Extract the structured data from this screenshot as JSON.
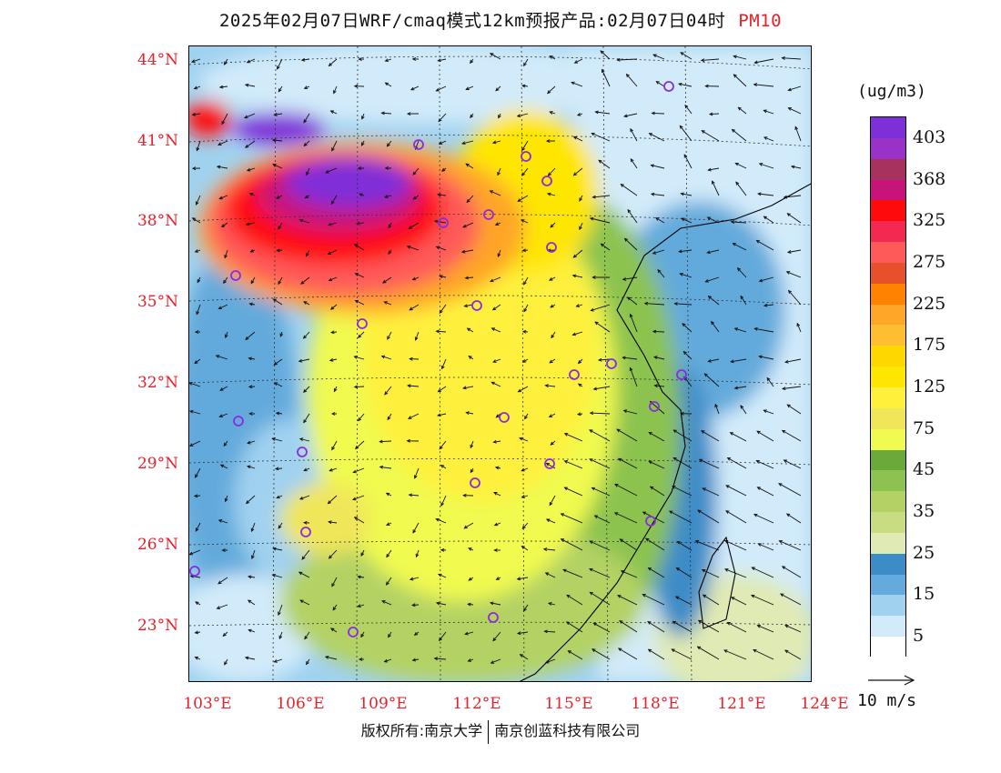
{
  "title": {
    "main": "2025年02月07日WRF/cmaq模式12km预报产品:02月07日04时",
    "pollutant": "PM10"
  },
  "map": {
    "lat_labels": [
      "44°N",
      "41°N",
      "38°N",
      "35°N",
      "32°N",
      "29°N",
      "26°N",
      "23°N"
    ],
    "lon_labels": [
      "103°E",
      "106°E",
      "109°E",
      "112°E",
      "115°E",
      "118°E",
      "121°E",
      "124°E"
    ]
  },
  "legend": {
    "unit": "(ug/m3)",
    "bins": [
      {
        "label": "403",
        "color": "#7f2fd8"
      },
      {
        "label": "",
        "color": "#9a32c8"
      },
      {
        "label": "368",
        "color": "#a8325e"
      },
      {
        "label": "",
        "color": "#c8147a"
      },
      {
        "label": "325",
        "color": "#ff0a0a"
      },
      {
        "label": "",
        "color": "#f42850"
      },
      {
        "label": "275",
        "color": "#ff5a5a"
      },
      {
        "label": "",
        "color": "#e6502a"
      },
      {
        "label": "225",
        "color": "#ff8200"
      },
      {
        "label": "",
        "color": "#ffa528"
      },
      {
        "label": "175",
        "color": "#ffbe32"
      },
      {
        "label": "",
        "color": "#ffd700"
      },
      {
        "label": "125",
        "color": "#ffe600"
      },
      {
        "label": "",
        "color": "#fff03c"
      },
      {
        "label": "75",
        "color": "#f0e65a"
      },
      {
        "label": "",
        "color": "#f0fa50"
      },
      {
        "label": "45",
        "color": "#6aaa3a"
      },
      {
        "label": "",
        "color": "#8cc350"
      },
      {
        "label": "35",
        "color": "#b4d264"
      },
      {
        "label": "",
        "color": "#c8dc82"
      },
      {
        "label": "25",
        "color": "#e0eab4"
      },
      {
        "label": "",
        "color": "#3c8cc8"
      },
      {
        "label": "15",
        "color": "#64aadc"
      },
      {
        "label": "",
        "color": "#a0d2f0"
      },
      {
        "label": "5",
        "color": "#d2ebfa"
      },
      {
        "label": "",
        "color": "#ffffff"
      }
    ]
  },
  "wind_reference": {
    "label": "10 m/s"
  },
  "copyright": {
    "left": "版权所有:南京大学",
    "right": "南京创蓝科技有限公司"
  },
  "colors": {
    "label_red": "#e8202a",
    "marker": "#8a2be2"
  }
}
